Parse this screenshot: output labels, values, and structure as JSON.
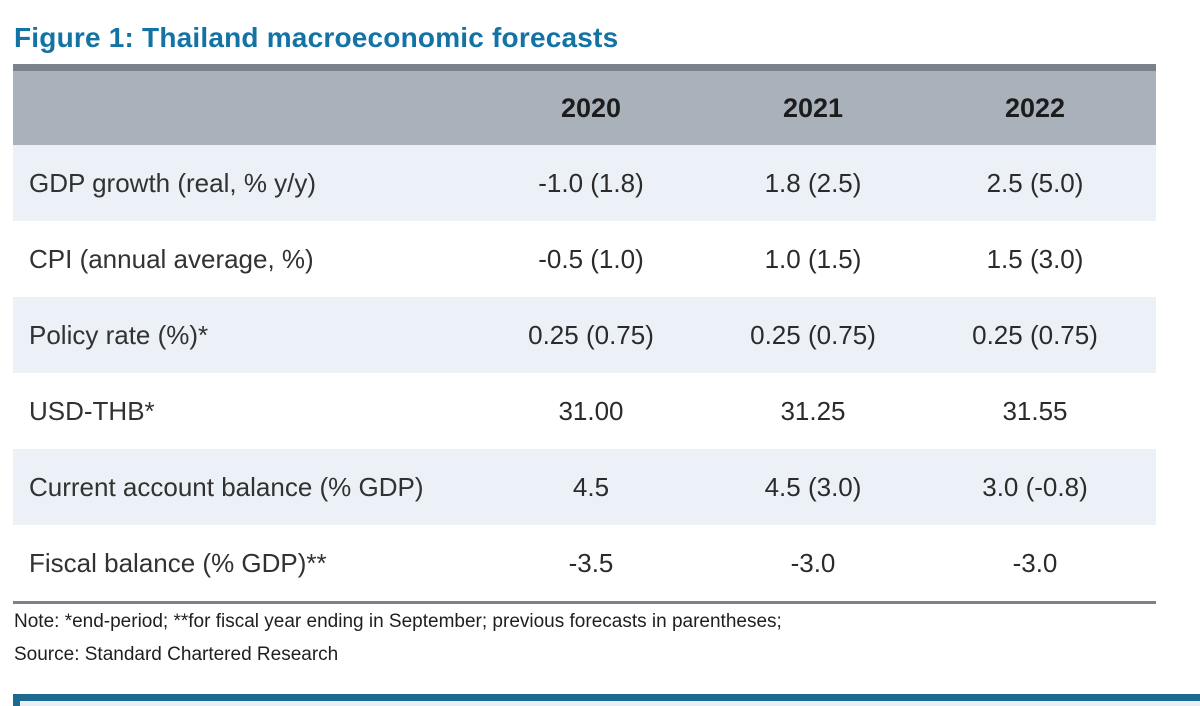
{
  "figure": {
    "title": "Figure 1: Thailand macroeconomic forecasts"
  },
  "table": {
    "columns": [
      "2020",
      "2021",
      "2022"
    ],
    "rows": [
      {
        "label": "GDP growth (real, % y/y)",
        "values": [
          "-1.0 (1.8)",
          "1.8 (2.5)",
          "2.5 (5.0)"
        ]
      },
      {
        "label": "CPI (annual average, %)",
        "values": [
          "-0.5 (1.0)",
          "1.0 (1.5)",
          "1.5 (3.0)"
        ]
      },
      {
        "label": "Policy rate (%)*",
        "values": [
          "0.25 (0.75)",
          "0.25 (0.75)",
          "0.25 (0.75)"
        ]
      },
      {
        "label": "USD-THB*",
        "values": [
          "31.00",
          "31.25",
          "31.55"
        ]
      },
      {
        "label": "Current account balance (% GDP)",
        "values": [
          "4.5",
          "4.5 (3.0)",
          "3.0 (-0.8)"
        ]
      },
      {
        "label": "Fiscal balance (% GDP)**",
        "values": [
          "-3.5",
          "-3.0",
          "-3.0"
        ]
      }
    ]
  },
  "footnotes": {
    "note": "Note: *end-period; **for fiscal year ending in September; previous forecasts in parentheses;",
    "source": "Source: Standard Chartered Research"
  },
  "colors": {
    "title_text": "#1273a4",
    "header_bg": "#a9b1ba",
    "header_top_strip": "#7b828a",
    "row_alt_bg": "#ecf1f7",
    "table_bottom_border": "#7b828a",
    "next_section_accent": "#1d6a90",
    "next_section_fill": "#e9eef4"
  }
}
